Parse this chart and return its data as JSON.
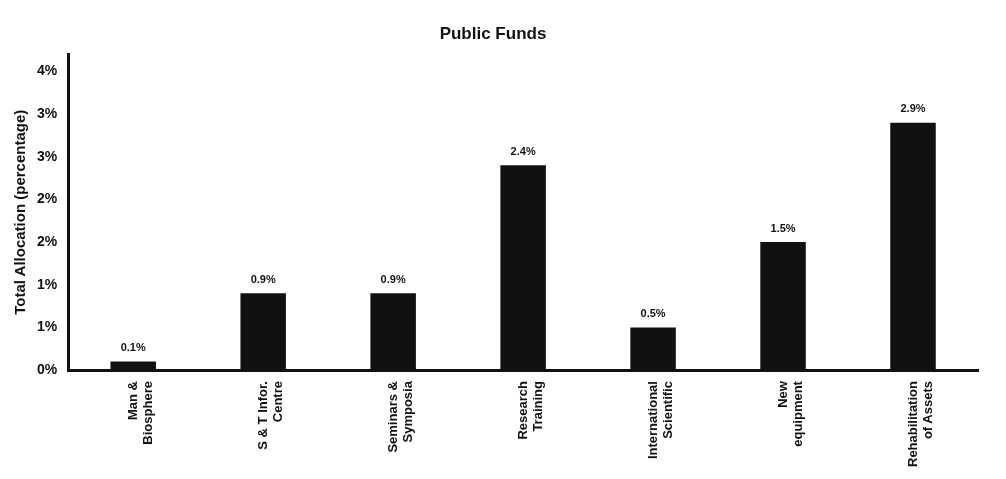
{
  "chart_data": {
    "type": "bar",
    "title": "Public Funds",
    "ylabel": "Total Allocation (percentage)",
    "categories": [
      "Man &\nBiosphere",
      "S & T Infor.\nCentre",
      "Seminars &\nSymposia",
      "Research\nTraining",
      "International\nScientific",
      "New\nequipment",
      "Rehabilitation\nof Assets"
    ],
    "values": [
      0.1,
      0.9,
      0.9,
      2.4,
      0.5,
      1.5,
      2.9
    ],
    "value_labels": [
      "0.1%",
      "0.9%",
      "0.9%",
      "2.4%",
      "0.5%",
      "1.5%",
      "2.9%"
    ],
    "color": "#111111",
    "ylim": [
      0,
      3.7
    ],
    "yticks": [
      {
        "value": 0,
        "label": "0%"
      },
      {
        "value": 0.5,
        "label": "1%"
      },
      {
        "value": 1,
        "label": "1%"
      },
      {
        "value": 1.5,
        "label": "2%"
      },
      {
        "value": 2,
        "label": "2%"
      },
      {
        "value": 2.5,
        "label": "3%"
      },
      {
        "value": 3,
        "label": "3%"
      },
      {
        "value": 3.5,
        "label": "4%"
      }
    ],
    "grid": false,
    "legend": false
  }
}
